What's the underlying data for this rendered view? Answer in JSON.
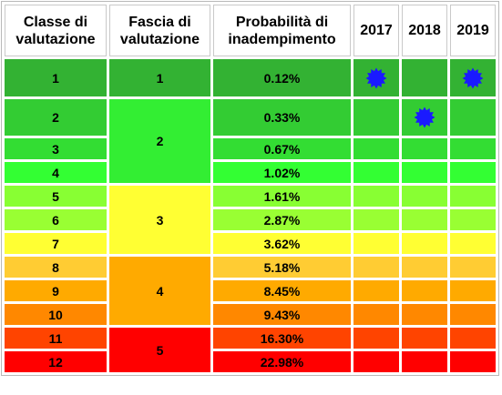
{
  "headers": {
    "classe": "Classe di valutazione",
    "fascia": "Fascia di valutazione",
    "probabilita": "Probabilità di inadempimento",
    "years": [
      "2017",
      "2018",
      "2019"
    ]
  },
  "colors": {
    "row": [
      "#33b233",
      "#33cc33",
      "#33dd33",
      "#33ff33",
      "#88ff33",
      "#99ff33",
      "#ffff33",
      "#ffcc33",
      "#ffaa00",
      "#ff8800",
      "#ff4400",
      "#ff0000"
    ],
    "fascia": [
      "#33b233",
      "#33ee33",
      "#ffff33",
      "#ffaa00",
      "#ff0000"
    ],
    "star": "#1a1aff"
  },
  "rows": [
    {
      "classe": "1",
      "prob": "0.12%",
      "stars": [
        true,
        false,
        true
      ]
    },
    {
      "classe": "2",
      "prob": "0.33%",
      "stars": [
        false,
        true,
        false
      ]
    },
    {
      "classe": "3",
      "prob": "0.67%",
      "stars": [
        false,
        false,
        false
      ]
    },
    {
      "classe": "4",
      "prob": "1.02%",
      "stars": [
        false,
        false,
        false
      ]
    },
    {
      "classe": "5",
      "prob": "1.61%",
      "stars": [
        false,
        false,
        false
      ]
    },
    {
      "classe": "6",
      "prob": "2.87%",
      "stars": [
        false,
        false,
        false
      ]
    },
    {
      "classe": "7",
      "prob": "3.62%",
      "stars": [
        false,
        false,
        false
      ]
    },
    {
      "classe": "8",
      "prob": "5.18%",
      "stars": [
        false,
        false,
        false
      ]
    },
    {
      "classe": "9",
      "prob": "8.45%",
      "stars": [
        false,
        false,
        false
      ]
    },
    {
      "classe": "10",
      "prob": "9.43%",
      "stars": [
        false,
        false,
        false
      ]
    },
    {
      "classe": "11",
      "prob": "16.30%",
      "stars": [
        false,
        false,
        false
      ]
    },
    {
      "classe": "12",
      "prob": "22.98%",
      "stars": [
        false,
        false,
        false
      ]
    }
  ],
  "fasce": [
    {
      "label": "1",
      "start": 0,
      "span": 1
    },
    {
      "label": "2",
      "start": 1,
      "span": 3
    },
    {
      "label": "3",
      "start": 4,
      "span": 3
    },
    {
      "label": "4",
      "start": 7,
      "span": 3
    },
    {
      "label": "5",
      "start": 10,
      "span": 2
    }
  ]
}
